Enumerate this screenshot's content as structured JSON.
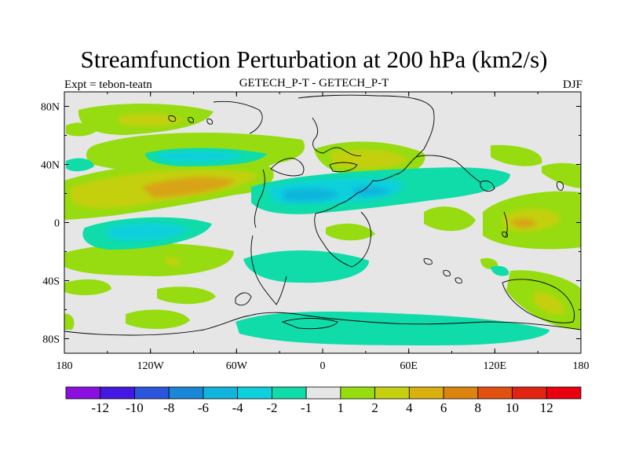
{
  "map": {
    "title": "Streamfunction Perturbation at 200 hPa (km2/s)",
    "left_label": "Expt = tebon-teatn",
    "center_label": "GETECH_P-T - GETECH_P-T",
    "right_label": "DJF",
    "lat_ticks": [
      "80N",
      "40N",
      "0",
      "40S",
      "80S"
    ],
    "lon_ticks": [
      "180",
      "120W",
      "60W",
      "0",
      "60E",
      "120E",
      "180"
    ],
    "lat_tick_values": [
      80,
      40,
      0,
      -40,
      -80
    ],
    "lon_tick_values": [
      -180,
      -120,
      -60,
      0,
      60,
      120,
      180
    ],
    "lat_range": [
      -90,
      90
    ],
    "lon_range": [
      -180,
      180
    ]
  },
  "colorbar": {
    "labels": [
      "-12",
      "-10",
      "-8",
      "-6",
      "-4",
      "-2",
      "-1",
      "1",
      "2",
      "4",
      "6",
      "8",
      "10",
      "12"
    ],
    "colors": [
      "#8a0fe0",
      "#4318e0",
      "#2a55dc",
      "#1a86d8",
      "#10b4dc",
      "#0ed0dc",
      "#10dcaa",
      "#e6e6e6",
      "#96dc10",
      "#c4d010",
      "#d8b010",
      "#dc8410",
      "#e05010",
      "#e02410",
      "#e80010"
    ]
  },
  "colors": {
    "background": "#e6e6e6",
    "coast": "#000000"
  }
}
